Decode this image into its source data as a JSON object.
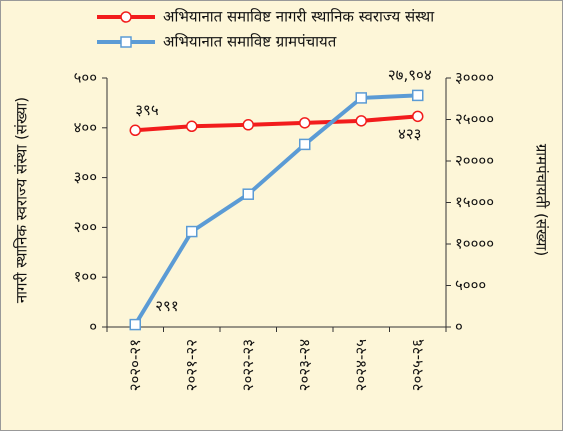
{
  "chart_data": {
    "type": "line",
    "categories": [
      "२०२०-२१",
      "२०२१-२२",
      "२०२२-२३",
      "२०२३-२४",
      "२०२४-२५",
      "२०२५-२६"
    ],
    "series": [
      {
        "name": "अभियानात समाविष्ट नागरी स्थानिक स्वराज्य संस्था",
        "color": "#f21c1c",
        "axis": "y",
        "values": [
          395,
          403,
          406,
          410,
          414,
          423
        ],
        "value_labels": [
          "३९५",
          null,
          null,
          null,
          null,
          "४२३"
        ]
      },
      {
        "name": "अभियानात समाविष्ट ग्रामपंचायत",
        "color": "#5b9bd5",
        "axis": "y2",
        "values": [
          291,
          11500,
          16000,
          22000,
          27600,
          27904
        ],
        "value_labels": [
          "२९१",
          null,
          null,
          null,
          null,
          "२७,९०४"
        ]
      }
    ],
    "ylabel": "नागरी स्थानिक स्वराज्य संस्था (संख्या)",
    "y2label": "ग्रामपंचायती (संख्या)",
    "ylim": [
      0,
      500
    ],
    "yticks": [
      {
        "value": 0,
        "label": "०"
      },
      {
        "value": 100,
        "label": "१००"
      },
      {
        "value": 200,
        "label": "२००"
      },
      {
        "value": 300,
        "label": "३००"
      },
      {
        "value": 400,
        "label": "४००"
      },
      {
        "value": 500,
        "label": "५००"
      }
    ],
    "y2lim": [
      0,
      30000
    ],
    "y2ticks": [
      {
        "value": 0,
        "label": "०"
      },
      {
        "value": 5000,
        "label": "५०००"
      },
      {
        "value": 10000,
        "label": "१००००"
      },
      {
        "value": 15000,
        "label": "१५०००"
      },
      {
        "value": 20000,
        "label": "२००००"
      },
      {
        "value": 25000,
        "label": "२५०००"
      },
      {
        "value": 30000,
        "label": "३००००"
      }
    ],
    "legend": "top",
    "grid": false
  }
}
